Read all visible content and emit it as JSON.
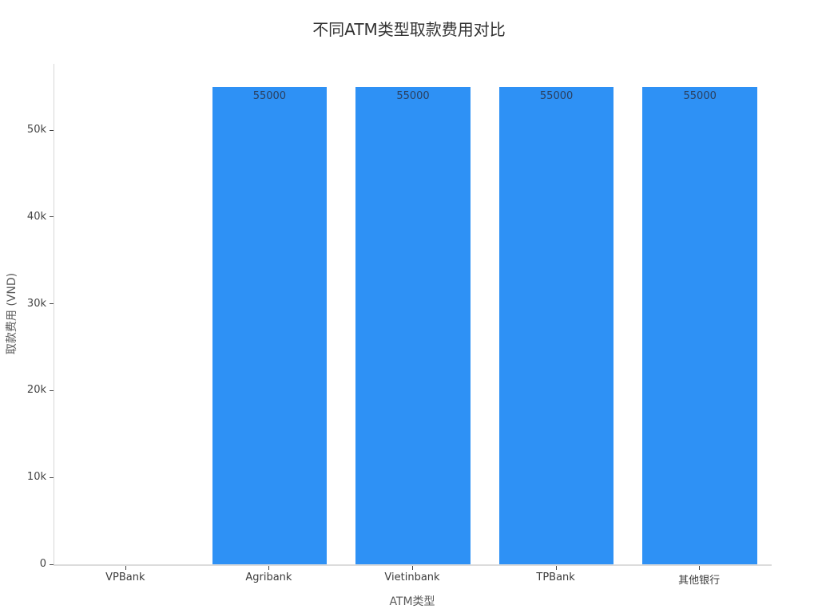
{
  "chart_data": {
    "type": "bar",
    "title": "不同ATM类型取款费用对比",
    "xlabel": "ATM类型",
    "ylabel": "取款费用 (VND)",
    "categories": [
      "VPBank",
      "Agribank",
      "Vietinbank",
      "TPBank",
      "其他银行"
    ],
    "values": [
      0,
      55000,
      55000,
      55000,
      55000
    ],
    "bar_labels": [
      "",
      "55000",
      "55000",
      "55000",
      "55000"
    ],
    "yticks": [
      {
        "value": 0,
        "label": "0"
      },
      {
        "value": 10000,
        "label": "10k"
      },
      {
        "value": 20000,
        "label": "20k"
      },
      {
        "value": 30000,
        "label": "30k"
      },
      {
        "value": 40000,
        "label": "40k"
      },
      {
        "value": 50000,
        "label": "50k"
      }
    ],
    "ylim": [
      0,
      57600
    ],
    "grid": false,
    "legend": "none",
    "bar_color": "#2e91f5",
    "value_label_color": "#2a3f5f",
    "axis_line_color": "#dcdcdc"
  }
}
